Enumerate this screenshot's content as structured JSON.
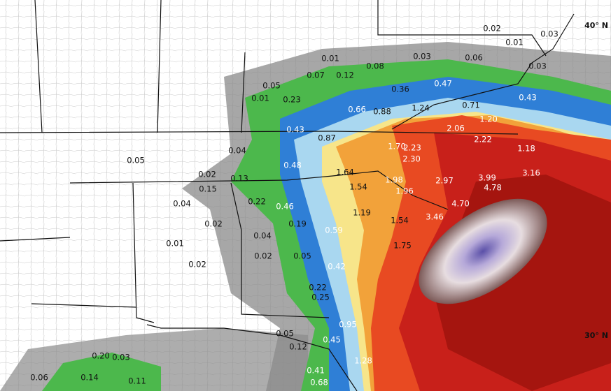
{
  "map": {
    "latitude_labels": [
      "40° N",
      "30° N"
    ],
    "labels": [
      "0.02",
      "0.01",
      "0.03",
      "0.03",
      "0.01",
      "0.03",
      "0.06",
      "0.08",
      "0.07",
      "0.12",
      "0.05",
      "0.36",
      "0.47",
      "0.01",
      "0.23",
      "0.66",
      "0.88",
      "1.24",
      "0.71",
      "0.43",
      "1.20",
      "2.06",
      "0.43",
      "0.87",
      "2.22",
      "1.70",
      "2.23",
      "2.30",
      "1.18",
      "0.04",
      "0.05",
      "0.48",
      "0.02",
      "1.64",
      "3.16",
      "0.13",
      "1.54",
      "1.98",
      "1.96",
      "2.97",
      "3.99",
      "4.78",
      "0.15",
      "0.04",
      "0.22",
      "0.46",
      "1.19",
      "4.70",
      "0.02",
      "1.54",
      "3.46",
      "0.19",
      "0.59",
      "0.04",
      "0.01",
      "1.75",
      "0.02",
      "0.05",
      "0.02",
      "0.42",
      "0.22",
      "0.25",
      "0.95",
      "0.05",
      "0.45",
      "0.12",
      "1.28",
      "0.20",
      "0.03",
      "0.06",
      "0.14",
      "0.11",
      "0.41",
      "0.68"
    ]
  }
}
